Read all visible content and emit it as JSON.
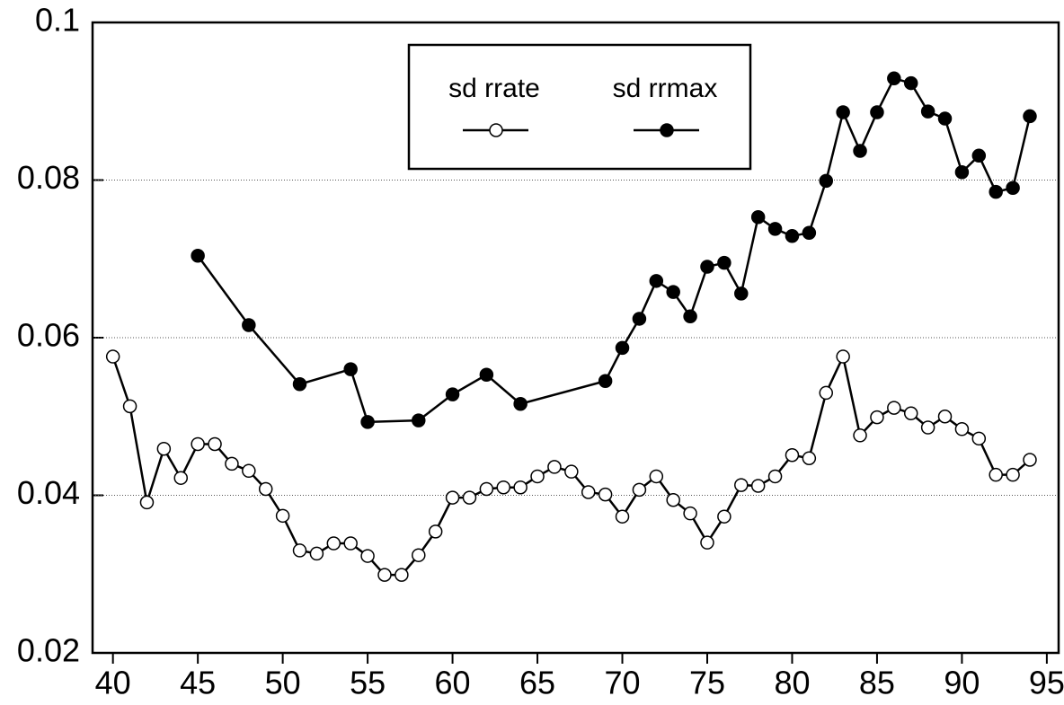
{
  "chart_data": {
    "type": "line",
    "xlim": [
      38.8,
      95.8
    ],
    "xticks": [
      40,
      45,
      50,
      55,
      60,
      65,
      70,
      75,
      80,
      85,
      90,
      95
    ],
    "ylim": [
      0.02,
      0.1
    ],
    "yticks": [
      0.02,
      0.04,
      0.06,
      0.08,
      0.1
    ],
    "grid": true,
    "legend": "top",
    "series": [
      {
        "name": "sd rrate",
        "color": "#000000",
        "marker": "open",
        "x": [
          40,
          41,
          42,
          43,
          44,
          45,
          46,
          47,
          48,
          49,
          50,
          51,
          52,
          53,
          54,
          55,
          56,
          57,
          58,
          59,
          60,
          61,
          62,
          63,
          64,
          65,
          66,
          67,
          68,
          69,
          70,
          71,
          72,
          73,
          74,
          75,
          76,
          77,
          78,
          79,
          80,
          81,
          82,
          83,
          84,
          85,
          86,
          87,
          88,
          89,
          90,
          91,
          92,
          93,
          94
        ],
        "values": [
          0.0576,
          0.0513,
          0.0391,
          0.0459,
          0.0422,
          0.0465,
          0.0465,
          0.044,
          0.0431,
          0.0408,
          0.0374,
          0.033,
          0.0326,
          0.0339,
          0.0339,
          0.0323,
          0.0299,
          0.0299,
          0.0324,
          0.0354,
          0.0397,
          0.0397,
          0.0408,
          0.041,
          0.041,
          0.0424,
          0.0436,
          0.043,
          0.0404,
          0.0401,
          0.0373,
          0.0407,
          0.0424,
          0.0394,
          0.0377,
          0.034,
          0.0373,
          0.0413,
          0.0412,
          0.0424,
          0.0451,
          0.0447,
          0.053,
          0.0576,
          0.0476,
          0.0499,
          0.0511,
          0.0504,
          0.0486,
          0.05,
          0.0484,
          0.0472,
          0.0426,
          0.0426,
          0.0445
        ]
      },
      {
        "name": "sd rrmax",
        "color": "#000000",
        "marker": "filled",
        "x": [
          45,
          48,
          51,
          54,
          55,
          58,
          60,
          62,
          64,
          69,
          70,
          71,
          72,
          73,
          74,
          75,
          76,
          77,
          78,
          79,
          80,
          81,
          82,
          83,
          84,
          85,
          86,
          87,
          88,
          89,
          90,
          91,
          92,
          93,
          94
        ],
        "values": [
          0.0704,
          0.0616,
          0.0541,
          0.056,
          0.0493,
          0.0495,
          0.0528,
          0.0553,
          0.0516,
          0.0545,
          0.0587,
          0.0624,
          0.0672,
          0.0658,
          0.0627,
          0.069,
          0.0695,
          0.0656,
          0.0753,
          0.0738,
          0.0729,
          0.0733,
          0.0799,
          0.0886,
          0.0837,
          0.0886,
          0.0929,
          0.0923,
          0.0887,
          0.0878,
          0.081,
          0.0831,
          0.0785,
          0.079,
          0.0881
        ]
      }
    ]
  }
}
